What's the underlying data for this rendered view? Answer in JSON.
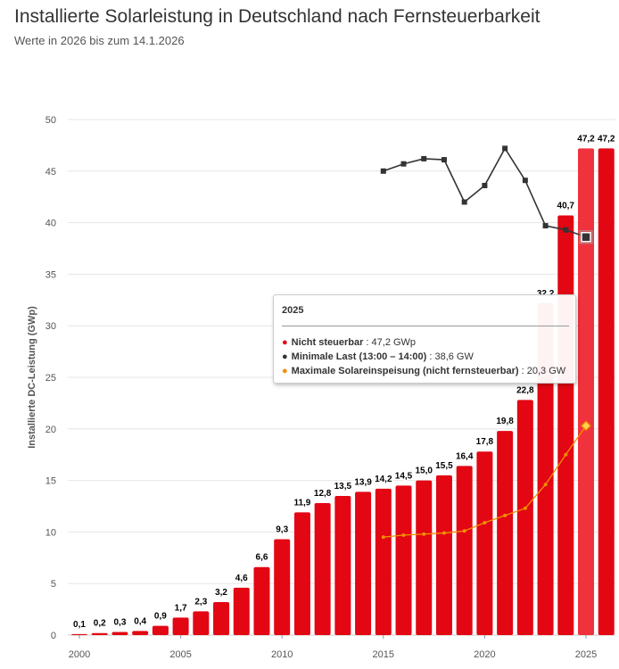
{
  "title": "Installierte Solarleistung in Deutschland nach Fernsteuerbarkeit",
  "subtitle": "Werte in 2026 bis zum 14.1.2026",
  "tooltip": {
    "header": "2025",
    "rows": [
      {
        "label": "Nicht steuerbar",
        "value": "47,2 GWp",
        "color": "#e30613"
      },
      {
        "label": "Minimale Last (13:00 – 14:00)",
        "value": "38,6 GW",
        "color": "#333333"
      },
      {
        "label": "Maximale Solareinspeisung (nicht fernsteuerbar)",
        "value": "20,3 GW",
        "color": "#f28e00"
      }
    ]
  },
  "chart_data": {
    "type": "bar",
    "ylabel": "Installierte DC-Leistung (GWp)",
    "xlabel": "",
    "ylim": [
      0,
      50
    ],
    "yticks": [
      0,
      5,
      10,
      15,
      20,
      25,
      30,
      35,
      40,
      45,
      50
    ],
    "xticks": [
      2000,
      2005,
      2010,
      2015,
      2020,
      2025
    ],
    "grid": true,
    "categories": [
      2000,
      2001,
      2002,
      2003,
      2004,
      2005,
      2006,
      2007,
      2008,
      2009,
      2010,
      2011,
      2012,
      2013,
      2014,
      2015,
      2016,
      2017,
      2018,
      2019,
      2020,
      2021,
      2022,
      2023,
      2024,
      2025,
      2026
    ],
    "series": [
      {
        "name": "Nicht steuerbar",
        "type": "bar",
        "color": "#e30613",
        "values": [
          0.1,
          0.2,
          0.3,
          0.4,
          0.9,
          1.7,
          2.3,
          3.2,
          4.6,
          6.6,
          9.3,
          11.9,
          12.8,
          13.5,
          13.9,
          14.2,
          14.5,
          15.0,
          15.5,
          16.4,
          17.8,
          19.8,
          22.8,
          32.2,
          40.7,
          47.2,
          47.2
        ],
        "labels": [
          "0,1",
          "0,2",
          "0,3",
          "0,4",
          "0,9",
          "1,7",
          "2,3",
          "3,2",
          "4,6",
          "6,6",
          "9,3",
          "11,9",
          "12,8",
          "13,5",
          "13,9",
          "14,2",
          "14,5",
          "15,0",
          "15,5",
          "16,4",
          "17,8",
          "19,8",
          "22,8",
          "32,2",
          "40,7",
          "47,2",
          "47,2"
        ]
      },
      {
        "name": "Minimale Last (13:00 – 14:00)",
        "type": "line",
        "color": "#333333",
        "x": [
          2015,
          2016,
          2017,
          2018,
          2019,
          2020,
          2021,
          2022,
          2023,
          2024,
          2025
        ],
        "values": [
          45.0,
          45.7,
          46.2,
          46.1,
          42.0,
          43.6,
          47.2,
          44.1,
          39.7,
          39.3,
          38.6
        ]
      },
      {
        "name": "Maximale Solareinspeisung (nicht fernsteuerbar)",
        "type": "line",
        "color": "#f28e00",
        "x": [
          2015,
          2016,
          2017,
          2018,
          2019,
          2020,
          2021,
          2022,
          2023,
          2024,
          2025
        ],
        "values": [
          9.5,
          9.7,
          9.8,
          9.9,
          10.1,
          10.9,
          11.6,
          12.3,
          14.6,
          17.5,
          20.3
        ]
      }
    ],
    "highlight": 2025
  }
}
